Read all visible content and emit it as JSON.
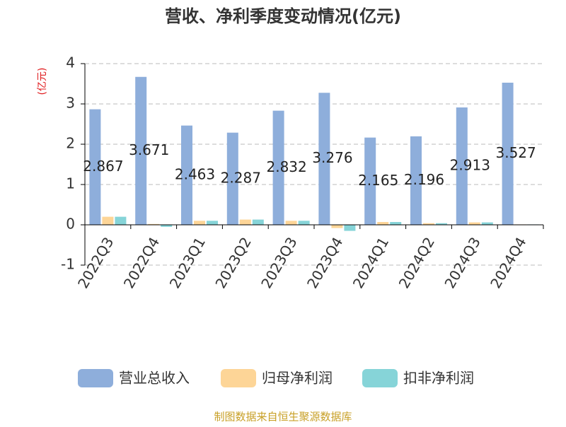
{
  "chart_data": {
    "type": "bar",
    "title": "营收、净利季度变动情况(亿元)",
    "y_label": "(亿元)",
    "source": "制图数据来自恒生聚源数据库",
    "categories": [
      "2022Q3",
      "2022Q4",
      "2023Q1",
      "2023Q2",
      "2023Q3",
      "2023Q4",
      "2024Q1",
      "2024Q2",
      "2024Q3",
      "2024Q4"
    ],
    "series": [
      {
        "name": "营业总收入",
        "color": "#8eaedb",
        "values": [
          2.867,
          3.671,
          2.463,
          2.287,
          2.832,
          3.276,
          2.165,
          2.196,
          2.913,
          3.527
        ],
        "show_labels": true
      },
      {
        "name": "归母净利润",
        "color": "#fdd597",
        "values": [
          0.2,
          0.02,
          0.1,
          0.13,
          0.1,
          -0.08,
          0.07,
          0.04,
          0.06,
          0.01
        ]
      },
      {
        "name": "扣非净利润",
        "color": "#86d4d8",
        "values": [
          0.2,
          -0.05,
          0.1,
          0.13,
          0.1,
          -0.15,
          0.07,
          0.04,
          0.06,
          0.01
        ]
      }
    ],
    "ylim": [
      -1,
      4
    ],
    "yticks": [
      -1,
      0,
      1,
      2,
      3,
      4
    ],
    "grid": true
  }
}
